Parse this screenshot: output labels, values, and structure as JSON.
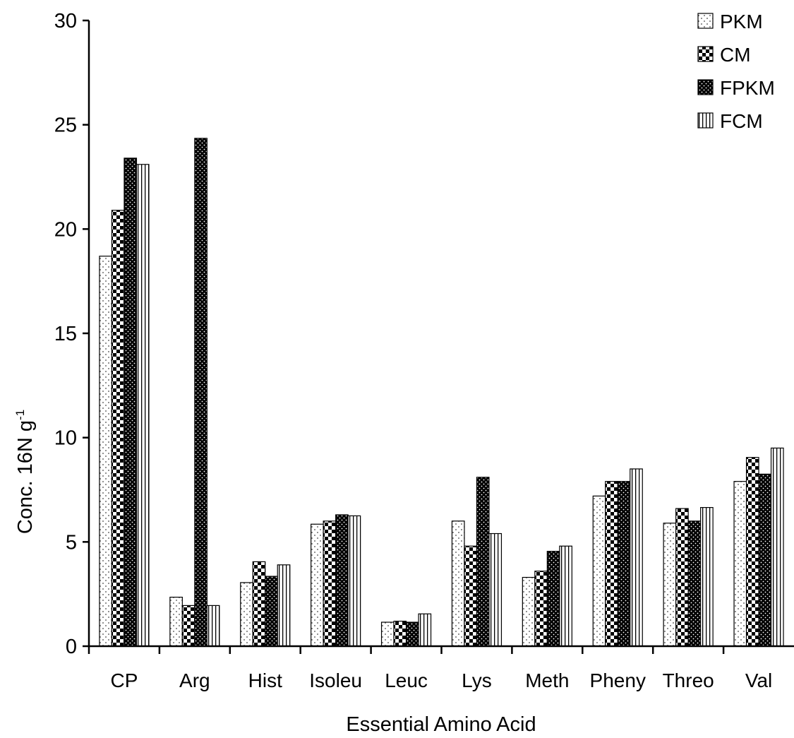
{
  "chart_data": {
    "type": "bar",
    "title": "",
    "xlabel": "Essential Amino Acid",
    "ylabel_main": "Conc. 16N g",
    "ylabel_sup": "-1",
    "ylim": [
      0,
      30
    ],
    "yticks": [
      "0",
      "5",
      "10",
      "15",
      "20",
      "25",
      "30"
    ],
    "grid": false,
    "legend_position": "top-right",
    "categories": [
      "CP",
      "Arg",
      "Hist",
      "Isoleu",
      "Leuc",
      "Lys",
      "Meth",
      "Pheny",
      "Threo",
      "Val"
    ],
    "series": [
      {
        "name": "PKM",
        "pattern": "dots",
        "values": [
          18.7,
          2.35,
          3.05,
          5.85,
          1.15,
          6.0,
          3.3,
          7.2,
          5.9,
          7.9
        ]
      },
      {
        "name": "CM",
        "pattern": "checker",
        "values": [
          20.9,
          1.95,
          4.05,
          6.0,
          1.2,
          4.8,
          3.6,
          7.9,
          6.6,
          9.05
        ]
      },
      {
        "name": "FPKM",
        "pattern": "dense",
        "values": [
          23.4,
          24.35,
          3.35,
          6.3,
          1.15,
          8.1,
          4.55,
          7.9,
          6.0,
          8.25
        ]
      },
      {
        "name": "FCM",
        "pattern": "vlines",
        "values": [
          23.1,
          1.95,
          3.9,
          6.25,
          1.55,
          5.4,
          4.8,
          8.5,
          6.65,
          9.5
        ]
      }
    ]
  }
}
